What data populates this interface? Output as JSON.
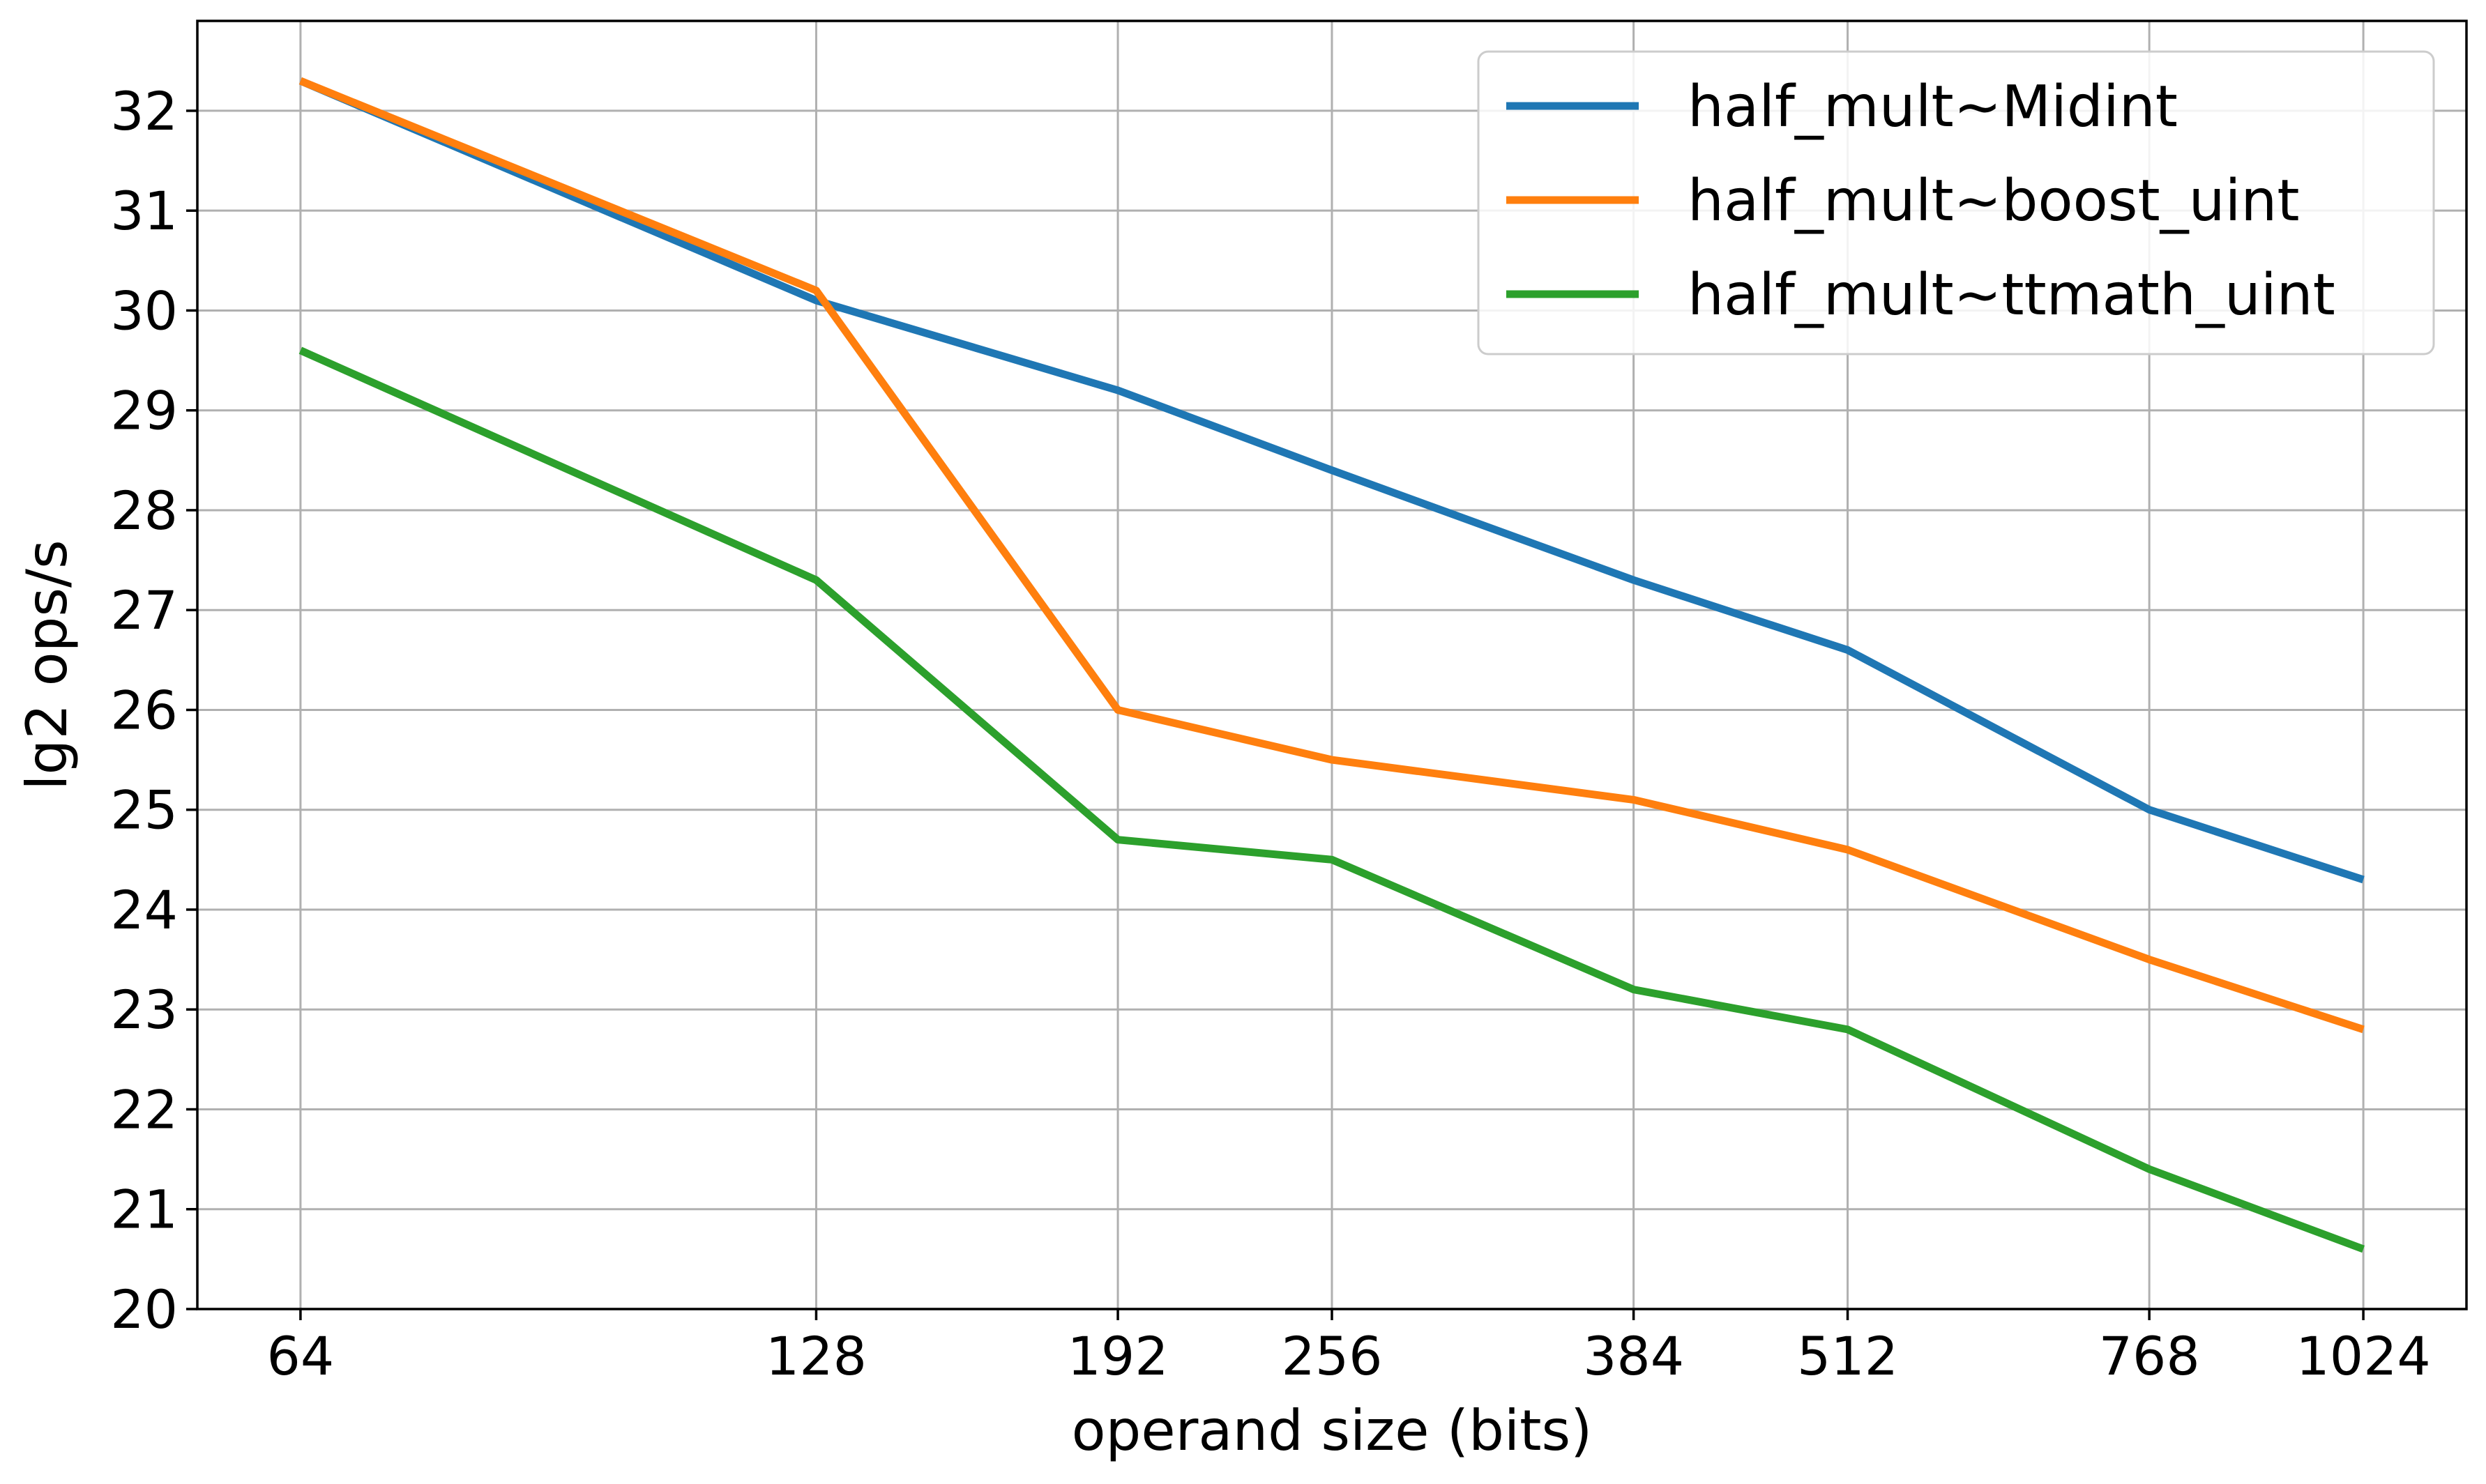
{
  "chart_data": {
    "type": "line",
    "xlabel": "operand size (bits)",
    "ylabel": "lg2 ops/s",
    "x_scale": "log2",
    "x": [
      64,
      128,
      192,
      256,
      384,
      512,
      768,
      1024
    ],
    "x_tick_labels": [
      "64",
      "128",
      "192",
      "256",
      "384",
      "512",
      "768",
      "1024"
    ],
    "y_ticks": [
      20,
      21,
      22,
      23,
      24,
      25,
      26,
      27,
      28,
      29,
      30,
      31,
      32
    ],
    "ylim": [
      20,
      32.9
    ],
    "grid": true,
    "legend_position": "top-right",
    "series": [
      {
        "name": "half_mult~Midint",
        "color": "#1f77b4",
        "values": [
          32.3,
          30.1,
          29.2,
          28.4,
          27.3,
          26.6,
          25.0,
          24.3
        ]
      },
      {
        "name": "half_mult~boost_uint",
        "color": "#ff7f0e",
        "values": [
          32.3,
          30.2,
          26.0,
          25.5,
          25.1,
          24.6,
          23.5,
          22.8
        ]
      },
      {
        "name": "half_mult~ttmath_uint",
        "color": "#2ca02c",
        "values": [
          29.6,
          27.3,
          24.7,
          24.5,
          23.2,
          22.8,
          21.4,
          20.6
        ]
      }
    ]
  }
}
